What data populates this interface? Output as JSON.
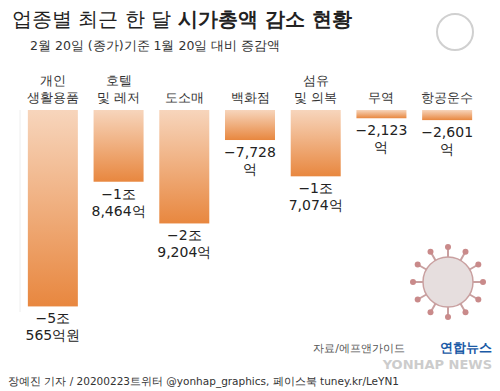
{
  "chart_data": {
    "type": "bar",
    "title": "업종별 최근 한 달 시가총액 감소 현황",
    "subtitle": "2월 20일 (종가)기준 1월 20일 대비 증감액",
    "categories": [
      "개인\n생활용품",
      "호텔\n및 레저",
      "도소매",
      "백화점",
      "섬유\n및 의복",
      "무역",
      "항공운수"
    ],
    "values": [
      -50565,
      -18464,
      -29204,
      -7728,
      -17074,
      -2123,
      -2601
    ],
    "value_labels": [
      "−5조\n565억원",
      "−1조\n8,464억",
      "−2조\n9,204억",
      "−7,728\n억",
      "−1조\n7,074억",
      "−2,123\n억",
      "−2,601\n억"
    ],
    "color": "#e8873f",
    "ylim": [
      -52000,
      0
    ],
    "data_labels": true,
    "tick_labels": "x",
    "source": "자료/에프앤가이드",
    "credit": "장예진 기자 / 20200223트위터 @yonhap_graphics, 페이스북 tuney.kr/LeYN1",
    "logo": "연합뉴스",
    "watermark": "YONHAP NEWS"
  }
}
